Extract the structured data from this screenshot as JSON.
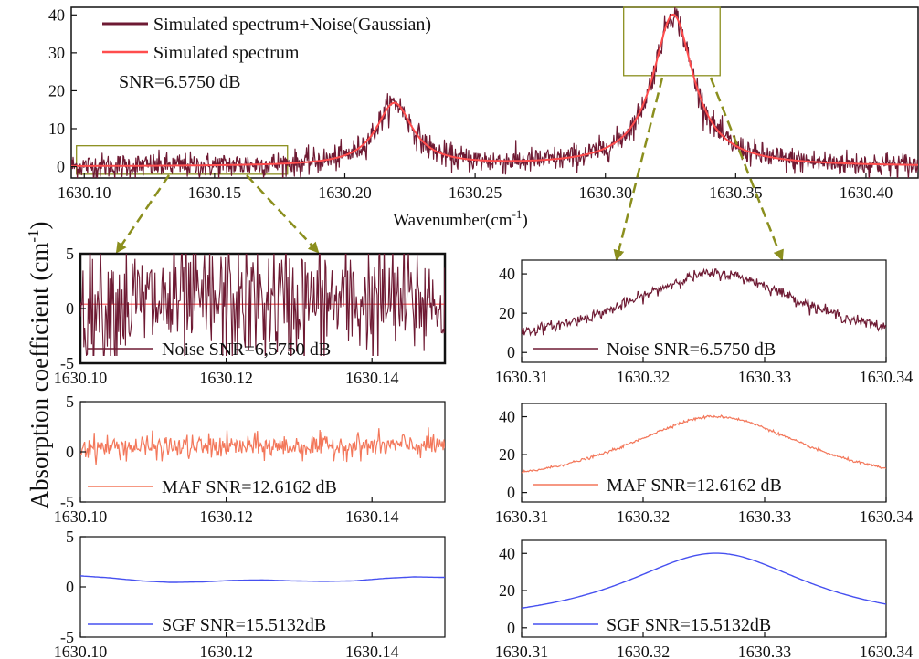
{
  "figure": {
    "ylabel": "Absorption coefficient (cm",
    "ylabel_sup": "-1",
    "ylabel_tail": ")"
  },
  "colors": {
    "noise": "#6e1a33",
    "fit": "#ff4d4d",
    "maf": "#f3775a",
    "sgf": "#4650f0",
    "zoombox": "#8b8f1e",
    "arrow": "#8b8f1e"
  },
  "chart_data": [
    {
      "id": "main",
      "type": "line",
      "title": "",
      "xlabel": "Wavenumber(cm",
      "xlabel_sup": "-1",
      "xlabel_tail": ")",
      "ylabel": "Absorption coefficient (cm-1)",
      "xlim": [
        1630.095,
        1630.42
      ],
      "ylim": [
        -3,
        42
      ],
      "xticks": [
        1630.1,
        1630.15,
        1630.2,
        1630.25,
        1630.3,
        1630.35,
        1630.4
      ],
      "xtick_labels": [
        "1630.10",
        "1630.15",
        "1630.20",
        "1630.25",
        "1630.30",
        "1630.35",
        "1630.40"
      ],
      "yticks": [
        0,
        10,
        20,
        30,
        40
      ],
      "ytick_labels": [
        "0",
        "10",
        "20",
        "30",
        "40"
      ],
      "peaks": [
        {
          "center": 1630.219,
          "height": 16.5,
          "width": 0.0085
        },
        {
          "center": 1630.326,
          "height": 40.0,
          "width": 0.0095
        }
      ],
      "noise_amplitude": 3.0,
      "series": [
        {
          "name": "Simulated spectrum+Noise(Gaussian)",
          "style": "noise"
        },
        {
          "name": "Simulated spectrum",
          "style": "fit"
        }
      ],
      "annotation": "SNR=6.5750 dB",
      "zoom_regions": [
        {
          "x": [
            1630.097,
            1630.178
          ],
          "y": [
            -2,
            5.5
          ]
        },
        {
          "x": [
            1630.307,
            1630.344
          ],
          "y": [
            24,
            42
          ]
        }
      ]
    },
    {
      "id": "left-noise",
      "type": "line",
      "xlim": [
        1630.1,
        1630.15
      ],
      "ylim": [
        -5,
        5
      ],
      "xticks": [
        1630.1,
        1630.12,
        1630.14
      ],
      "xtick_labels": [
        "1630.10",
        "1630.12",
        "1630.14"
      ],
      "yticks": [
        -5,
        0,
        5
      ],
      "ytick_labels": [
        "-5",
        "0",
        "5"
      ],
      "legend": "Noise SNR=6,5750 dB",
      "style": "noise",
      "baseline_style": "fit",
      "noise_amplitude": 2.8,
      "boxed": true
    },
    {
      "id": "right-noise",
      "type": "line",
      "xlim": [
        1630.31,
        1630.34
      ],
      "ylim": [
        -5,
        47
      ],
      "xticks": [
        1630.31,
        1630.32,
        1630.33,
        1630.34
      ],
      "xtick_labels": [
        "1630.31",
        "1630.32",
        "1630.33",
        "1630.34"
      ],
      "yticks": [
        0,
        20,
        40
      ],
      "ytick_labels": [
        "0",
        "20",
        "40"
      ],
      "legend": "Noise SNR=6.5750 dB",
      "style": "noise",
      "noise_amplitude": 1.4
    },
    {
      "id": "left-maf",
      "type": "line",
      "xlim": [
        1630.1,
        1630.15
      ],
      "ylim": [
        -5,
        5
      ],
      "xticks": [
        1630.1,
        1630.12,
        1630.14
      ],
      "xtick_labels": [
        "1630.10",
        "1630.12",
        "1630.14"
      ],
      "yticks": [
        -5,
        0,
        5
      ],
      "ytick_labels": [
        "-5",
        "0",
        "5"
      ],
      "legend": "MAF SNR=12.6162 dB",
      "style": "maf",
      "noise_amplitude": 0.6
    },
    {
      "id": "right-maf",
      "type": "line",
      "xlim": [
        1630.31,
        1630.34
      ],
      "ylim": [
        -5,
        47
      ],
      "xticks": [
        1630.31,
        1630.32,
        1630.33,
        1630.34
      ],
      "xtick_labels": [
        "1630.31",
        "1630.32",
        "1630.33",
        "1630.34"
      ],
      "yticks": [
        0,
        20,
        40
      ],
      "ytick_labels": [
        "0",
        "20",
        "40"
      ],
      "legend": "MAF SNR=12.6162 dB",
      "style": "maf",
      "noise_amplitude": 0.35
    },
    {
      "id": "left-sgf",
      "type": "line",
      "xlim": [
        1630.1,
        1630.15
      ],
      "ylim": [
        -5,
        5
      ],
      "xticks": [
        1630.1,
        1630.12,
        1630.14
      ],
      "xtick_labels": [
        "1630.10",
        "1630.12",
        "1630.14"
      ],
      "yticks": [
        -5,
        0,
        5
      ],
      "ytick_labels": [
        "-5",
        "0",
        "5"
      ],
      "legend": "SGF SNR=15.5132dB",
      "style": "sgf",
      "noise_amplitude": 0.0,
      "smooth_values": [
        1.1,
        0.9,
        0.6,
        0.45,
        0.5,
        0.65,
        0.7,
        0.6,
        0.55,
        0.6,
        0.85,
        1.0,
        0.95
      ]
    },
    {
      "id": "right-sgf",
      "type": "line",
      "xlim": [
        1630.31,
        1630.34
      ],
      "ylim": [
        -5,
        47
      ],
      "xticks": [
        1630.31,
        1630.32,
        1630.33,
        1630.34
      ],
      "xtick_labels": [
        "1630.31",
        "1630.32",
        "1630.33",
        "1630.34"
      ],
      "yticks": [
        0,
        20,
        40
      ],
      "ytick_labels": [
        "0",
        "20",
        "40"
      ],
      "legend": "SGF SNR=15.5132dB",
      "style": "sgf",
      "noise_amplitude": 0.0
    }
  ]
}
